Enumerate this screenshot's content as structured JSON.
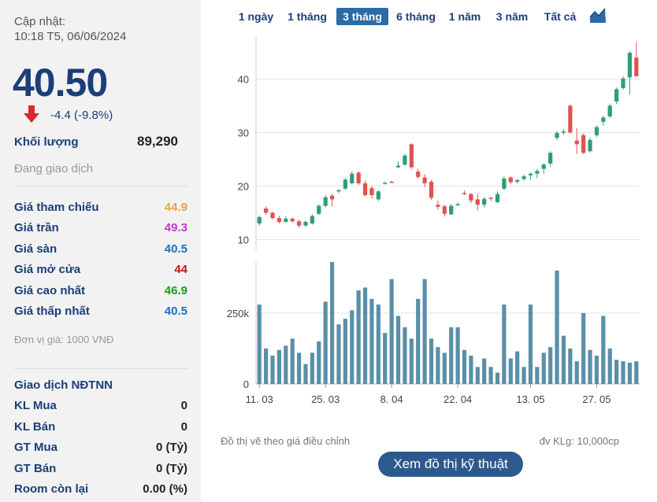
{
  "update": {
    "label": "Cập nhật:",
    "time": "10:18 T5, 06/06/2024"
  },
  "price": {
    "value": "40.50",
    "change": "-4.4 (-9.8%)"
  },
  "volume": {
    "label": "Khối lượng",
    "value": "89,290"
  },
  "status": "Đang giao dịch",
  "prices": [
    {
      "label": "Giá tham chiếu",
      "value": "44.9",
      "color": "#e8a33d"
    },
    {
      "label": "Giá trần",
      "value": "49.3",
      "color": "#c238c9"
    },
    {
      "label": "Giá sàn",
      "value": "40.5",
      "color": "#1d6fc4"
    },
    {
      "label": "Giá mở cửa",
      "value": "44",
      "color": "#c4161c"
    },
    {
      "label": "Giá cao nhất",
      "value": "46.9",
      "color": "#12a112"
    },
    {
      "label": "Giá thấp nhất",
      "value": "40.5",
      "color": "#1d6fc4"
    }
  ],
  "unit": "Đơn vị giá: 1000 VNĐ",
  "foreign": {
    "title": "Giao dịch NĐTNN",
    "rows": [
      {
        "label": "KL Mua",
        "value": "0"
      },
      {
        "label": "KL Bán",
        "value": "0"
      },
      {
        "label": "GT Mua",
        "value": "0 (Tỷ)"
      },
      {
        "label": "GT Bán",
        "value": "0 (Tỷ)"
      },
      {
        "label": "Room còn lại",
        "value": "0.00 (%)"
      }
    ]
  },
  "tabs": [
    "1 ngày",
    "1 tháng",
    "3 tháng",
    "6 tháng",
    "1 năm",
    "3 năm",
    "Tất cả"
  ],
  "active_tab": 2,
  "colors": {
    "up": "#2e9e78",
    "down": "#e05252",
    "volume": "#5a8fa8",
    "brand": "#1d3e78"
  },
  "chart_data": {
    "type": "candlestick",
    "y_ticks": [
      "10",
      "20",
      "30",
      "40"
    ],
    "ylim": [
      8,
      48
    ],
    "vol_ticks": [
      "0",
      "250k"
    ],
    "vol_ylim": [
      0,
      430000
    ],
    "x_ticks": [
      {
        "label": "11. 03",
        "index": 0
      },
      {
        "label": "25. 03",
        "index": 10
      },
      {
        "label": "8. 04",
        "index": 20
      },
      {
        "label": "22. 04",
        "index": 30
      },
      {
        "label": "13. 05",
        "index": 41
      },
      {
        "label": "27. 05",
        "index": 51
      }
    ],
    "candles": [
      {
        "o": 13.0,
        "h": 14.5,
        "l": 12.6,
        "c": 14.2,
        "v": 280000
      },
      {
        "o": 15.8,
        "h": 16.2,
        "l": 14.6,
        "c": 15.0,
        "v": 125000
      },
      {
        "o": 15.0,
        "h": 15.2,
        "l": 13.8,
        "c": 14.0,
        "v": 100000
      },
      {
        "o": 14.0,
        "h": 14.4,
        "l": 13.0,
        "c": 13.3,
        "v": 120000
      },
      {
        "o": 13.3,
        "h": 14.3,
        "l": 13.1,
        "c": 13.9,
        "v": 135000
      },
      {
        "o": 13.9,
        "h": 14.1,
        "l": 13.2,
        "c": 13.4,
        "v": 160000
      },
      {
        "o": 13.4,
        "h": 13.7,
        "l": 12.2,
        "c": 12.6,
        "v": 110000
      },
      {
        "o": 12.6,
        "h": 13.5,
        "l": 12.4,
        "c": 13.3,
        "v": 70000
      },
      {
        "o": 13.0,
        "h": 14.7,
        "l": 12.8,
        "c": 14.4,
        "v": 110000
      },
      {
        "o": 14.8,
        "h": 16.6,
        "l": 14.6,
        "c": 16.3,
        "v": 150000
      },
      {
        "o": 16.3,
        "h": 18.3,
        "l": 16.0,
        "c": 17.9,
        "v": 290000
      },
      {
        "o": 18.2,
        "h": 18.5,
        "l": 16.2,
        "c": 17.5,
        "v": 430000
      },
      {
        "o": 19.0,
        "h": 19.4,
        "l": 18.7,
        "c": 19.2,
        "v": 210000
      },
      {
        "o": 19.5,
        "h": 21.5,
        "l": 19.3,
        "c": 21.2,
        "v": 230000
      },
      {
        "o": 20.5,
        "h": 22.7,
        "l": 20.3,
        "c": 22.3,
        "v": 260000
      },
      {
        "o": 22.5,
        "h": 22.8,
        "l": 20.2,
        "c": 20.5,
        "v": 330000
      },
      {
        "o": 20.5,
        "h": 21.0,
        "l": 18.0,
        "c": 18.3,
        "v": 340000
      },
      {
        "o": 19.6,
        "h": 20.0,
        "l": 17.7,
        "c": 18.3,
        "v": 300000
      },
      {
        "o": 17.5,
        "h": 19.2,
        "l": 17.2,
        "c": 19.0,
        "v": 280000
      },
      {
        "o": 20.5,
        "h": 20.8,
        "l": 20.3,
        "c": 20.6,
        "v": 180000
      },
      {
        "o": 20.8,
        "h": 21.0,
        "l": 20.6,
        "c": 20.7,
        "v": 370000
      },
      {
        "o": 23.5,
        "h": 24.6,
        "l": 23.3,
        "c": 23.8,
        "v": 240000
      },
      {
        "o": 24.0,
        "h": 26.0,
        "l": 23.8,
        "c": 25.7,
        "v": 200000
      },
      {
        "o": 27.8,
        "h": 28.0,
        "l": 23.2,
        "c": 23.5,
        "v": 160000
      },
      {
        "o": 22.7,
        "h": 23.2,
        "l": 21.4,
        "c": 21.7,
        "v": 300000
      },
      {
        "o": 21.6,
        "h": 22.2,
        "l": 19.8,
        "c": 20.5,
        "v": 370000
      },
      {
        "o": 20.8,
        "h": 21.1,
        "l": 17.4,
        "c": 17.8,
        "v": 160000
      },
      {
        "o": 16.5,
        "h": 17.3,
        "l": 15.6,
        "c": 16.1,
        "v": 130000
      },
      {
        "o": 16.2,
        "h": 16.5,
        "l": 14.3,
        "c": 14.8,
        "v": 110000
      },
      {
        "o": 14.7,
        "h": 16.6,
        "l": 14.6,
        "c": 16.3,
        "v": 200000
      },
      {
        "o": 16.5,
        "h": 16.9,
        "l": 16.3,
        "c": 16.6,
        "v": 200000
      },
      {
        "o": 18.7,
        "h": 19.1,
        "l": 18.3,
        "c": 18.6,
        "v": 120000
      },
      {
        "o": 18.5,
        "h": 18.7,
        "l": 16.8,
        "c": 17.3,
        "v": 100000
      },
      {
        "o": 17.5,
        "h": 18.5,
        "l": 15.5,
        "c": 16.5,
        "v": 60000
      },
      {
        "o": 16.5,
        "h": 17.9,
        "l": 16.0,
        "c": 17.6,
        "v": 90000
      },
      {
        "o": 17.8,
        "h": 18.0,
        "l": 17.2,
        "c": 17.7,
        "v": 60000
      },
      {
        "o": 17.0,
        "h": 19.0,
        "l": 16.8,
        "c": 18.5,
        "v": 40000
      },
      {
        "o": 19.5,
        "h": 21.8,
        "l": 19.2,
        "c": 21.4,
        "v": 280000
      },
      {
        "o": 21.6,
        "h": 21.8,
        "l": 20.4,
        "c": 20.7,
        "v": 90000
      },
      {
        "o": 20.8,
        "h": 21.3,
        "l": 20.5,
        "c": 21.1,
        "v": 115000
      },
      {
        "o": 21.3,
        "h": 22.1,
        "l": 21.0,
        "c": 21.8,
        "v": 60000
      },
      {
        "o": 22.0,
        "h": 22.5,
        "l": 21.2,
        "c": 22.3,
        "v": 280000
      },
      {
        "o": 22.3,
        "h": 23.2,
        "l": 21.5,
        "c": 22.8,
        "v": 60000
      },
      {
        "o": 23.2,
        "h": 24.3,
        "l": 22.3,
        "c": 24.0,
        "v": 110000
      },
      {
        "o": 24.2,
        "h": 26.5,
        "l": 23.6,
        "c": 26.2,
        "v": 130000
      },
      {
        "o": 29.0,
        "h": 30.2,
        "l": 28.6,
        "c": 29.9,
        "v": 400000
      },
      {
        "o": 30.0,
        "h": 30.6,
        "l": 29.6,
        "c": 30.2,
        "v": 170000
      },
      {
        "o": 35.0,
        "h": 35.3,
        "l": 29.8,
        "c": 30.0,
        "v": 125000
      },
      {
        "o": 28.5,
        "h": 30.8,
        "l": 26.0,
        "c": 27.8,
        "v": 80000
      },
      {
        "o": 29.5,
        "h": 29.8,
        "l": 26.0,
        "c": 26.2,
        "v": 250000
      },
      {
        "o": 26.5,
        "h": 29.0,
        "l": 26.3,
        "c": 28.6,
        "v": 120000
      },
      {
        "o": 29.5,
        "h": 31.3,
        "l": 29.2,
        "c": 31.0,
        "v": 100000
      },
      {
        "o": 32.0,
        "h": 33.1,
        "l": 31.3,
        "c": 32.8,
        "v": 240000
      },
      {
        "o": 33.0,
        "h": 35.4,
        "l": 32.7,
        "c": 35.0,
        "v": 125000
      },
      {
        "o": 35.8,
        "h": 38.4,
        "l": 35.3,
        "c": 38.1,
        "v": 85000
      },
      {
        "o": 38.3,
        "h": 40.5,
        "l": 38.0,
        "c": 40.1,
        "v": 80000
      },
      {
        "o": 40.3,
        "h": 45.2,
        "l": 37.0,
        "c": 44.9,
        "v": 75000
      },
      {
        "o": 44.0,
        "h": 46.9,
        "l": 40.5,
        "c": 40.5,
        "v": 80000
      }
    ]
  },
  "notes": {
    "left": "Đồ thị vẽ theo giá điều chỉnh",
    "right": "đv KLg: 10,000cp"
  },
  "tech_button": "Xem đồ thị kỹ thuật"
}
